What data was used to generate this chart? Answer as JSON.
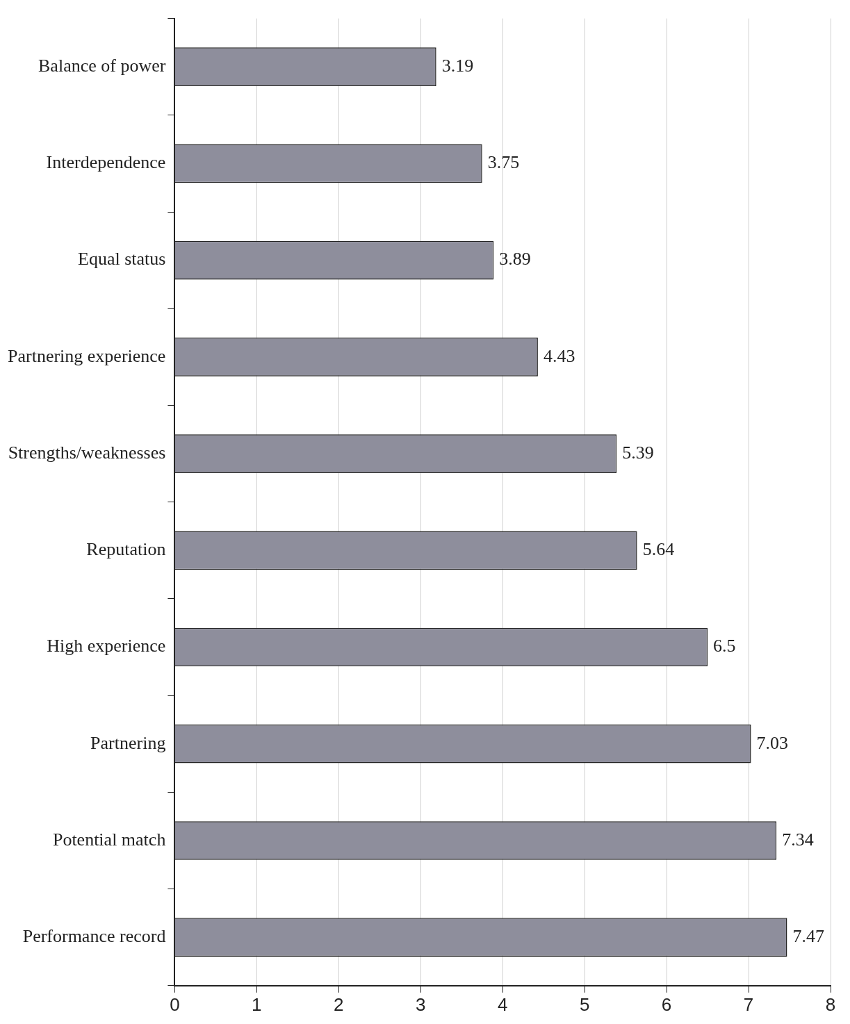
{
  "chart_data": {
    "type": "bar",
    "orientation": "horizontal",
    "categories": [
      "Balance of power",
      "Interdependence",
      "Equal status",
      "Partnering experience",
      "Strengths/weaknesses",
      "Reputation",
      "High experience",
      "Partnering",
      "Potential match",
      "Performance record"
    ],
    "values": [
      3.19,
      3.75,
      3.89,
      4.43,
      5.39,
      5.64,
      6.5,
      7.03,
      7.34,
      7.47
    ],
    "color": "#8e8e9c",
    "xlim": [
      0,
      8
    ],
    "xticks": [
      0,
      1,
      2,
      3,
      4,
      5,
      6,
      7,
      8
    ],
    "grid": "x",
    "data_labels": true,
    "legend": false
  }
}
